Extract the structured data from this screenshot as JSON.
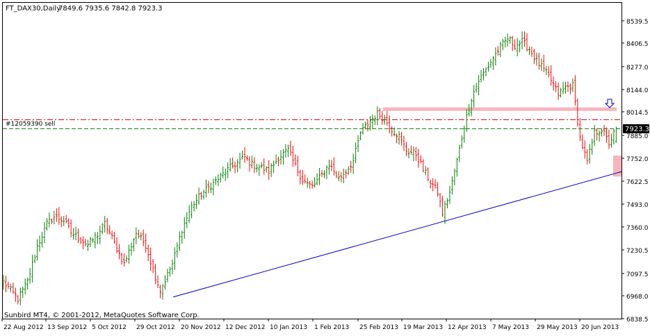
{
  "header": {
    "symbol_timeframe": "FT_DAX30,Daily",
    "ohlc": "7849.6 7935.6 7842.8 7923.3"
  },
  "copyright": "Sunbird MT4, © 2001-2012, MetaQuotes Software Corp.",
  "order_label": "#12059390 sell",
  "current_price": "7923.3",
  "colors": {
    "background": "#ffffff",
    "grid": "#c8c8c8",
    "bull_bar": "#008000",
    "bear_bar": "#ff0000",
    "trendline": "#0000c8",
    "zone": "#f4b6bc",
    "order_line": "#cc0000",
    "bid_line": "#008000"
  },
  "chart_data": {
    "type": "ohlc",
    "symbol": "FT_DAX30",
    "timeframe": "Daily",
    "y_ticks": [
      "8539.5",
      "8406.5",
      "8277.0",
      "8144.0",
      "8014.5",
      "7885.0",
      "7752.0",
      "7622.5",
      "7493.0",
      "7360.0",
      "7230.5",
      "7097.5",
      "6968.0",
      "6838.5"
    ],
    "ylim": [
      6838.5,
      8600
    ],
    "x_ticks": [
      "22 Aug 2012",
      "13 Sep 2012",
      "5 Oct 2012",
      "29 Oct 2012",
      "20 Nov 2012",
      "12 Dec 2012",
      "10 Jan 2013",
      "1 Feb 2013",
      "25 Feb 2013",
      "19 Mar 2013",
      "12 Apr 2013",
      "7 May 2013",
      "29 May 2013",
      "20 Jun 2013"
    ],
    "close_anchors": [
      [
        0,
        7050
      ],
      [
        6,
        6950
      ],
      [
        10,
        7050
      ],
      [
        14,
        7250
      ],
      [
        18,
        7380
      ],
      [
        21,
        7420
      ],
      [
        25,
        7400
      ],
      [
        28,
        7330
      ],
      [
        31,
        7300
      ],
      [
        35,
        7260
      ],
      [
        39,
        7320
      ],
      [
        42,
        7380
      ],
      [
        45,
        7300
      ],
      [
        50,
        7150
      ],
      [
        55,
        7330
      ],
      [
        59,
        7260
      ],
      [
        62,
        7120
      ],
      [
        65,
        7000
      ],
      [
        70,
        7150
      ],
      [
        74,
        7350
      ],
      [
        78,
        7480
      ],
      [
        82,
        7550
      ],
      [
        86,
        7600
      ],
      [
        90,
        7650
      ],
      [
        93,
        7690
      ],
      [
        96,
        7720
      ],
      [
        100,
        7760
      ],
      [
        103,
        7720
      ],
      [
        107,
        7700
      ],
      [
        110,
        7680
      ],
      [
        114,
        7760
      ],
      [
        118,
        7800
      ],
      [
        121,
        7710
      ],
      [
        124,
        7630
      ],
      [
        128,
        7590
      ],
      [
        132,
        7660
      ],
      [
        135,
        7720
      ],
      [
        139,
        7640
      ],
      [
        142,
        7680
      ],
      [
        145,
        7740
      ],
      [
        148,
        7900
      ],
      [
        152,
        7970
      ],
      [
        155,
        8010
      ],
      [
        158,
        7980
      ],
      [
        161,
        7920
      ],
      [
        164,
        7880
      ],
      [
        167,
        7800
      ],
      [
        171,
        7780
      ],
      [
        174,
        7690
      ],
      [
        177,
        7620
      ],
      [
        180,
        7560
      ],
      [
        182,
        7440
      ],
      [
        185,
        7560
      ],
      [
        188,
        7740
      ],
      [
        191,
        7940
      ],
      [
        194,
        8100
      ],
      [
        197,
        8200
      ],
      [
        200,
        8260
      ],
      [
        203,
        8330
      ],
      [
        206,
        8390
      ],
      [
        209,
        8440
      ],
      [
        212,
        8400
      ],
      [
        215,
        8420
      ],
      [
        218,
        8380
      ],
      [
        221,
        8310
      ],
      [
        224,
        8260
      ],
      [
        227,
        8200
      ],
      [
        230,
        8120
      ],
      [
        233,
        8160
      ],
      [
        236,
        8170
      ],
      [
        239,
        7870
      ],
      [
        242,
        7730
      ],
      [
        245,
        7900
      ],
      [
        248,
        7920
      ],
      [
        251,
        7840
      ],
      [
        254,
        7923
      ]
    ],
    "last_bar": {
      "open": 7849.6,
      "high": 7935.6,
      "low": 7842.8,
      "close": 7923.3
    },
    "horizontal_zone_low": 8025,
    "horizontal_zone_high": 8045,
    "order_line_level": 7975,
    "bid_line_level": 7923.3,
    "trendline_start": {
      "date": "20 Nov 2012",
      "price": 6962
    },
    "trendline_end": {
      "date": "20 Jun 2013",
      "price": 7685
    },
    "grid": false
  }
}
